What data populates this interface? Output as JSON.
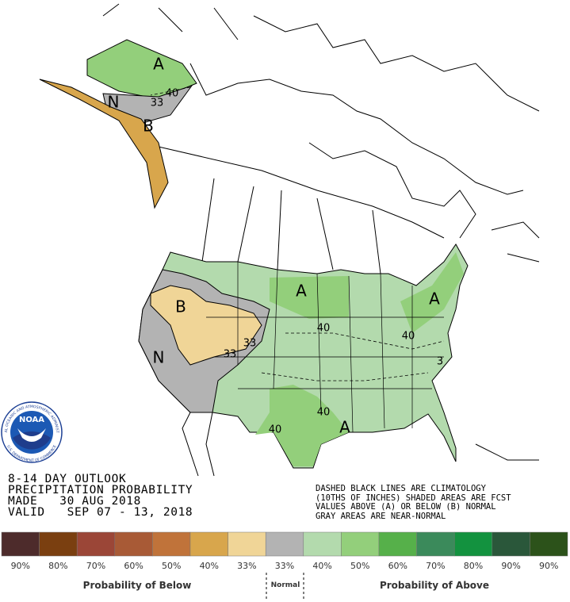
{
  "logo": {
    "name": "NOAA",
    "ring_top": "NATIONAL OCEANIC AND ATMOSPHERIC ADMINISTRATION",
    "ring_bottom": "U.S. DEPARTMENT OF COMMERCE"
  },
  "outlook": {
    "lines": [
      "8-14 DAY OUTLOOK",
      "PRECIPITATION PROBABILITY",
      "MADE   30 AUG 2018",
      "VALID   SEP 07 - 13, 2018"
    ]
  },
  "notes": [
    "DASHED BLACK LINES ARE CLIMATOLOGY",
    "(10THS OF INCHES) SHADED AREAS ARE FCST",
    "VALUES ABOVE (A) OR BELOW (B) NORMAL",
    "GRAY AREAS ARE NEAR-NORMAL"
  ],
  "map_labels": [
    "A",
    "40",
    "33",
    "N",
    "B",
    "B",
    "N",
    "33",
    "33",
    "A",
    "40",
    "A",
    "40",
    "40",
    "A",
    "40",
    "3"
  ],
  "legend": {
    "swatches": [
      {
        "color": "#4d2b2b",
        "label": "90%"
      },
      {
        "color": "#7a3f10",
        "label": "80%"
      },
      {
        "color": "#9b4637",
        "label": "70%"
      },
      {
        "color": "#a85a36",
        "label": "60%"
      },
      {
        "color": "#c0733a",
        "label": "50%"
      },
      {
        "color": "#d8a64c",
        "label": "40%"
      },
      {
        "color": "#f0d597",
        "label": "33%"
      },
      {
        "color": "#b3b3b3",
        "label": "33%"
      },
      {
        "color": "#b3daad",
        "label": "40%"
      },
      {
        "color": "#93cf7b",
        "label": "50%"
      },
      {
        "color": "#56b04a",
        "label": "60%"
      },
      {
        "color": "#3b8a5b",
        "label": "70%"
      },
      {
        "color": "#13923f",
        "label": "80%"
      },
      {
        "color": "#2a573a",
        "label": "90%"
      },
      {
        "color": "#2c521a",
        "label": "90%"
      }
    ],
    "below_title": "Probability of Below",
    "normal": "Normal",
    "above_title": "Probability of Above"
  }
}
